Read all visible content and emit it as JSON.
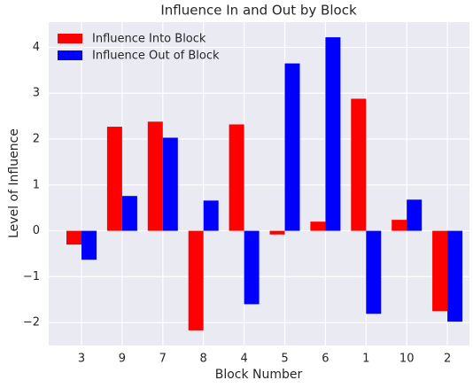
{
  "chart_data": {
    "type": "bar",
    "title": "Influence In and Out by Block",
    "xlabel": "Block Number",
    "ylabel": "Level of Influence",
    "categories": [
      "3",
      "9",
      "7",
      "8",
      "4",
      "5",
      "6",
      "1",
      "10",
      "2"
    ],
    "series": [
      {
        "name": "Influence Into Block",
        "color": "#ff0000",
        "values": [
          -0.3,
          2.27,
          2.38,
          -2.17,
          2.32,
          -0.08,
          0.2,
          2.88,
          0.24,
          -1.75
        ]
      },
      {
        "name": "Influence Out of Block",
        "color": "#0000ff",
        "values": [
          -0.63,
          0.76,
          2.03,
          0.66,
          -1.6,
          3.65,
          4.22,
          -1.81,
          0.68,
          -1.98
        ]
      }
    ],
    "ylim": [
      -2.5,
      4.55
    ],
    "yticks": [
      {
        "value": -2,
        "label": "−2"
      },
      {
        "value": -1,
        "label": "−1"
      },
      0,
      1,
      2,
      3,
      4
    ],
    "grid": true,
    "legend": "upper left"
  }
}
